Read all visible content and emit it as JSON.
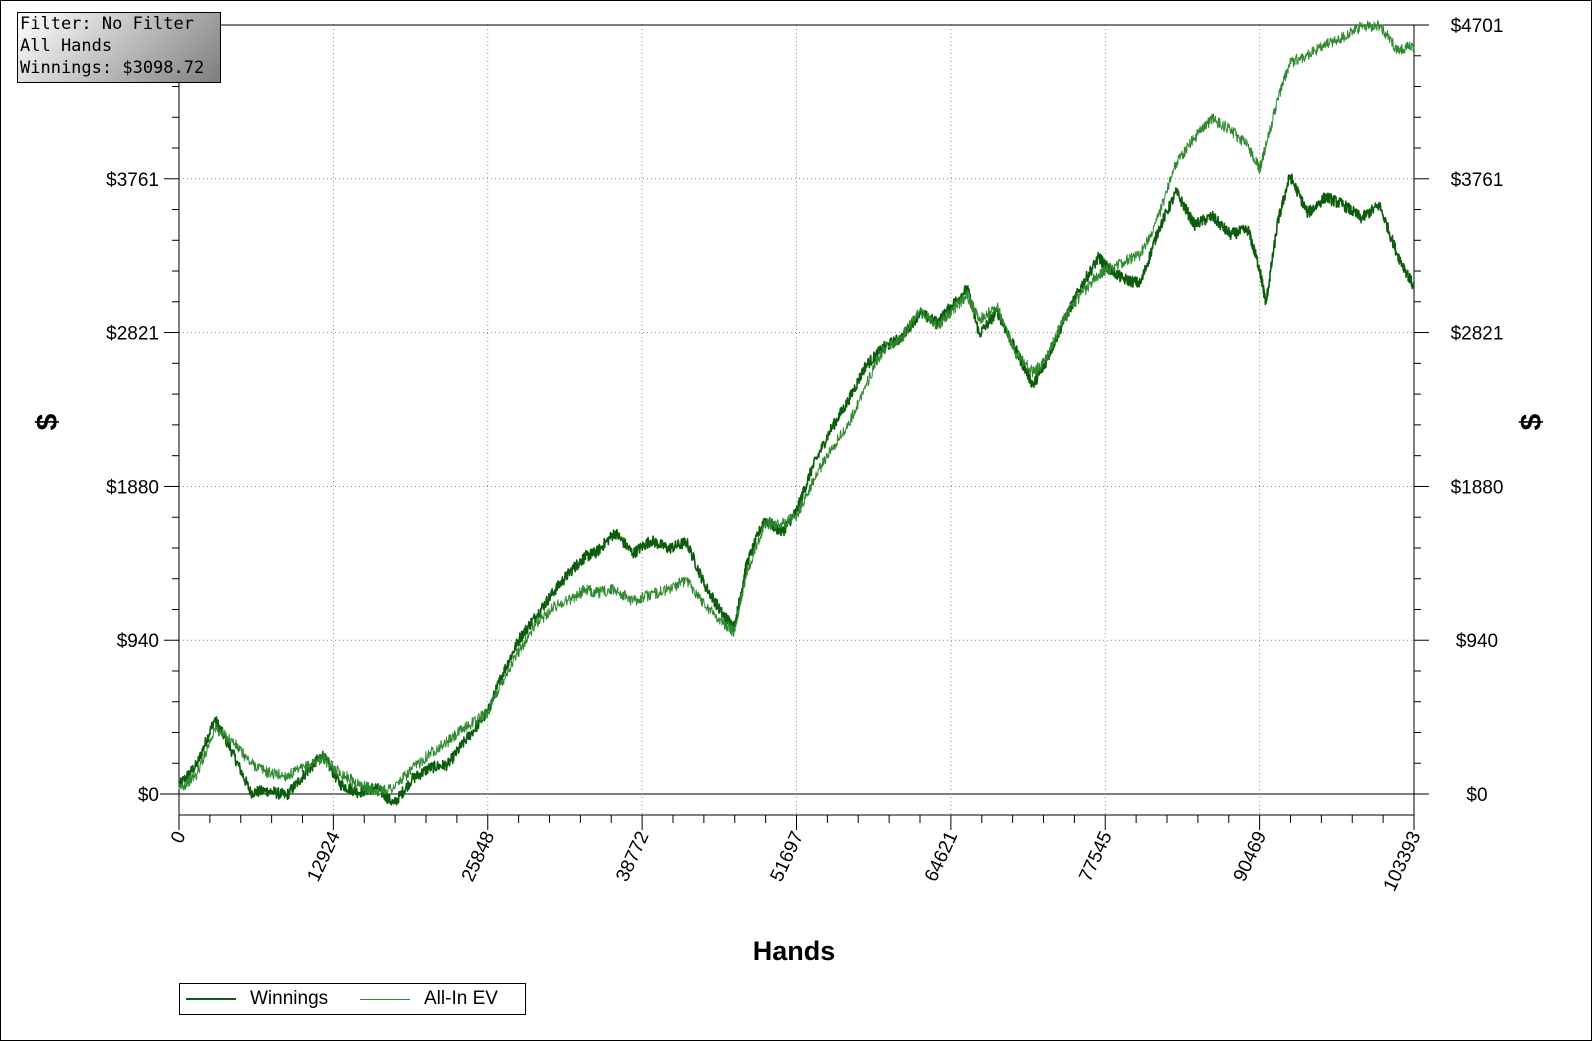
{
  "info": {
    "filter": "Filter: No Filter",
    "hands": "All Hands",
    "winnings": "Winnings: $3098.72"
  },
  "colors": {
    "winnings": "#0b5c0b",
    "allin_ev": "#2f8a2f",
    "grid": "#888888",
    "axis": "#000000"
  },
  "chart_data": {
    "type": "line",
    "title": "",
    "xlabel": "Hands",
    "ylabel": "$",
    "ylabel_right": "$",
    "xlim": [
      0,
      103393
    ],
    "ylim": [
      0,
      4701
    ],
    "x_ticks": [
      "0",
      "12924",
      "25848",
      "38772",
      "51697",
      "64621",
      "77545",
      "90469",
      "103393"
    ],
    "x_tick_values": [
      0,
      12924,
      25848,
      38772,
      51697,
      64621,
      77545,
      90469,
      103393
    ],
    "y_ticks": [
      "$0",
      "$940",
      "$1880",
      "$2821",
      "$3761",
      "$4701"
    ],
    "y_tick_values": [
      0,
      940,
      1880,
      2821,
      3761,
      4701
    ],
    "grid": true,
    "legend_position": "bottom-left",
    "series": [
      {
        "name": "Winnings",
        "x": [
          0,
          1500,
          3000,
          4500,
          6000,
          7500,
          9000,
          10500,
          12000,
          13500,
          15000,
          16500,
          18000,
          19500,
          21000,
          22500,
          24000,
          25848,
          27000,
          28500,
          30000,
          31500,
          33000,
          34000,
          35000,
          36500,
          38000,
          39500,
          41000,
          42500,
          44000,
          45500,
          46500,
          47500,
          49000,
          50500,
          51697,
          53000,
          54500,
          56000,
          57500,
          59000,
          60500,
          62000,
          63500,
          64621,
          66000,
          67000,
          68500,
          70000,
          71500,
          72500,
          74000,
          75500,
          77000,
          77545,
          79000,
          80500,
          82000,
          83500,
          85000,
          86500,
          88000,
          89500,
          90469,
          91000,
          92000,
          93000,
          94500,
          96000,
          97500,
          99000,
          100500,
          102000,
          103393
        ],
        "values": [
          50,
          180,
          460,
          250,
          10,
          20,
          -10,
          120,
          240,
          60,
          10,
          40,
          -60,
          90,
          160,
          180,
          330,
          500,
          720,
          950,
          1100,
          1250,
          1380,
          1450,
          1480,
          1600,
          1470,
          1550,
          1500,
          1540,
          1280,
          1100,
          1020,
          1400,
          1680,
          1600,
          1730,
          1990,
          2220,
          2400,
          2620,
          2730,
          2790,
          2940,
          2880,
          2980,
          3090,
          2810,
          2950,
          2720,
          2500,
          2630,
          2880,
          3100,
          3280,
          3230,
          3150,
          3120,
          3450,
          3680,
          3480,
          3530,
          3420,
          3450,
          3210,
          3000,
          3500,
          3780,
          3550,
          3650,
          3600,
          3520,
          3600,
          3300,
          3098.72
        ]
      },
      {
        "name": "All-In EV",
        "x": [
          0,
          1500,
          3000,
          4500,
          6000,
          7500,
          9000,
          10500,
          12000,
          13500,
          15000,
          16500,
          18000,
          19500,
          21000,
          22500,
          24000,
          25848,
          27000,
          28500,
          30000,
          31500,
          33000,
          34000,
          35000,
          36500,
          38000,
          39500,
          41000,
          42500,
          44000,
          45500,
          46500,
          47500,
          49000,
          50500,
          51697,
          53000,
          54500,
          56000,
          57500,
          59000,
          60500,
          62000,
          63500,
          64621,
          66000,
          67000,
          68500,
          70000,
          71500,
          72500,
          74000,
          75500,
          77000,
          77545,
          79000,
          80500,
          82000,
          83500,
          85000,
          86500,
          88000,
          89500,
          90469,
          91000,
          92000,
          93000,
          94500,
          96000,
          97500,
          99000,
          100500,
          102000,
          103393
        ],
        "values": [
          30,
          120,
          400,
          320,
          190,
          130,
          110,
          160,
          220,
          130,
          60,
          20,
          40,
          150,
          250,
          320,
          410,
          500,
          680,
          880,
          1050,
          1150,
          1200,
          1250,
          1230,
          1250,
          1180,
          1220,
          1250,
          1310,
          1160,
          1050,
          990,
          1350,
          1650,
          1650,
          1700,
          1900,
          2100,
          2250,
          2500,
          2720,
          2790,
          2950,
          2860,
          2950,
          3050,
          2900,
          2980,
          2700,
          2580,
          2640,
          2900,
          3050,
          3180,
          3200,
          3250,
          3300,
          3530,
          3860,
          4010,
          4130,
          4060,
          3960,
          3820,
          3960,
          4250,
          4470,
          4520,
          4580,
          4630,
          4690,
          4700,
          4550,
          4570
        ]
      }
    ]
  }
}
